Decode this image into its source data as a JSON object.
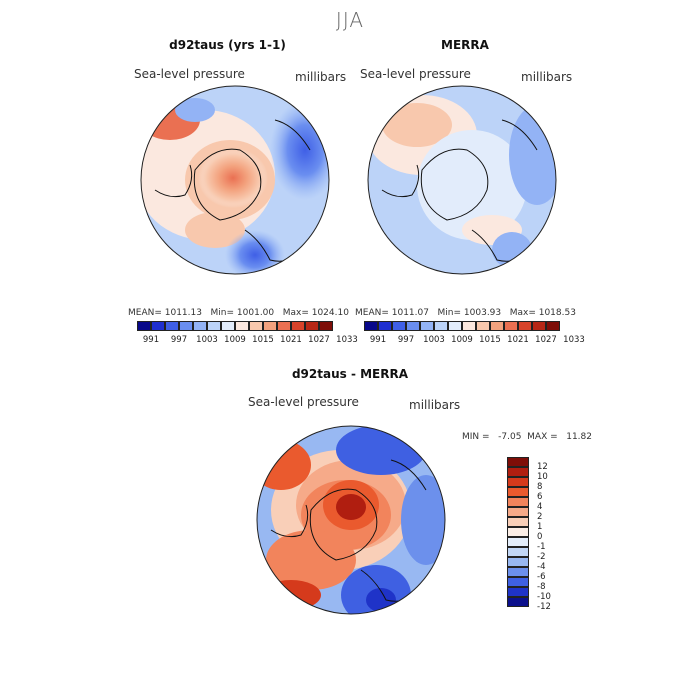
{
  "season": "JJA",
  "panels": {
    "model": {
      "title": "d92taus (yrs 1-1)",
      "variable": "Sea-level pressure",
      "units": "millibars",
      "stats": "MEAN= 1011.13   Min= 1001.00   Max= 1024.10"
    },
    "obs": {
      "title": "MERRA",
      "variable": "Sea-level pressure",
      "units": "millibars",
      "stats": "MEAN= 1011.07   Min= 1003.93   Max= 1018.53"
    },
    "diff": {
      "title": "d92taus - MERRA",
      "variable": "Sea-level pressure",
      "units": "millibars",
      "stats": "MIN =   -7.05  MAX =   11.82"
    }
  },
  "abs_colorbar": {
    "colors": [
      "#08088a",
      "#1f2fd0",
      "#3f5fe6",
      "#6a8ef0",
      "#93b3f5",
      "#bcd3f8",
      "#e2ecfb",
      "#fbe8df",
      "#f8c8ad",
      "#f3a27e",
      "#ea7052",
      "#d8432a",
      "#b62716",
      "#7e0e08"
    ],
    "tick_labels": [
      "991",
      "997",
      "1003",
      "1009",
      "1015",
      "1021",
      "1027",
      "1033"
    ]
  },
  "diff_colorbar": {
    "colors": [
      "#7e0e08",
      "#b01e10",
      "#d53a1c",
      "#ea5a2e",
      "#f2845c",
      "#f6aa89",
      "#f9cfb8",
      "#fbeee6",
      "#e4eefb",
      "#c2d7f6",
      "#98b8f2",
      "#6c90ec",
      "#3f60e2",
      "#1f33c8",
      "#0b108c"
    ],
    "tick_labels": [
      "12",
      "10",
      "8",
      "6",
      "4",
      "2",
      "1",
      "0",
      "-1",
      "-2",
      "-4",
      "-6",
      "-8",
      "-10",
      "-12"
    ]
  },
  "icons": {
    "map_projection": "north-polar-stereographic"
  }
}
